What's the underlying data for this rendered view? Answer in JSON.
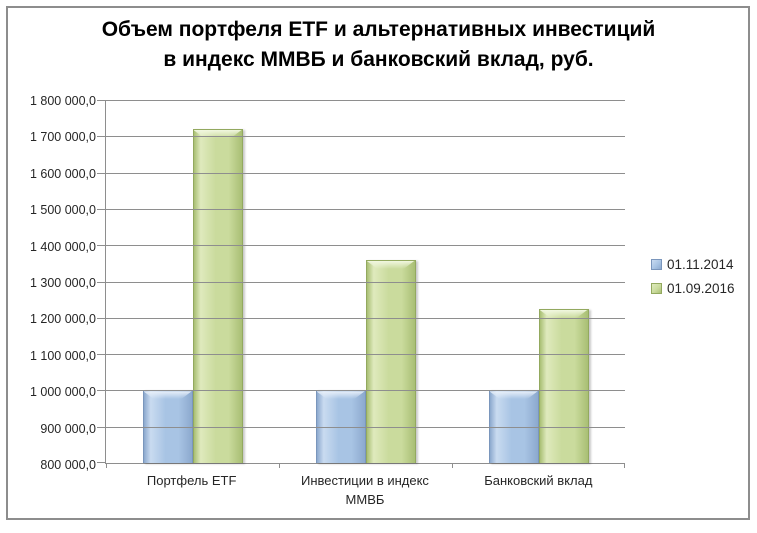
{
  "window": {
    "background_color": "#FFFFFF",
    "border_color": "#8D8D8D"
  },
  "chart_data": {
    "type": "bar",
    "title": "Объем портфеля ETF и альтернативных инвестиций в индекс ММВБ и банковский вклад, руб.",
    "title_lines": [
      "Объем портфеля ETF и альтернативных инвестиций",
      "в индекс ММВБ и банковский вклад, руб."
    ],
    "categories": [
      "Портфель ETF",
      "Инвестиции в индекс ММВБ",
      "Банковский вклад"
    ],
    "series": [
      {
        "name": "01.11.2014",
        "values": [
          1000000,
          1000000,
          1000000
        ],
        "colors": {
          "border": "#7A96BC",
          "edge": "#8CA9CE",
          "face": "#A8C4E4",
          "light": "#C9DBF0",
          "hilite": "#EAF1FA"
        }
      },
      {
        "name": "01.09.2016",
        "values": [
          1720000,
          1360000,
          1225000
        ],
        "colors": {
          "border": "#93A95F",
          "edge": "#A9BF74",
          "face": "#CADB9D",
          "light": "#DFEABD",
          "hilite": "#F1F7E0"
        }
      }
    ],
    "xlabel": "",
    "ylabel": "",
    "ylim": [
      800000,
      1800000
    ],
    "ytick_step": 100000,
    "yticklabels": [
      "800 000,0",
      "900 000,0",
      "1 000 000,0",
      "1 100 000,0",
      "1 200 000,0",
      "1 300 000,0",
      "1 400 000,0",
      "1 500 000,0",
      "1 600 000,0",
      "1 700 000,0",
      "1 800 000,0"
    ],
    "grid": true,
    "legend_position": "right",
    "axis_color": "#8E8E8E",
    "gridline_color": "#8E8E8E",
    "text_color": "#262626"
  }
}
